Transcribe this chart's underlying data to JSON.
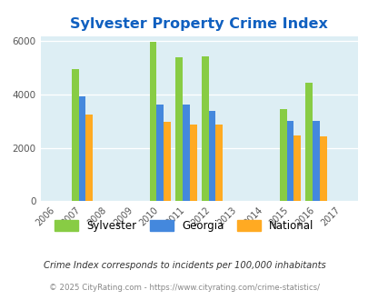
{
  "title": "Sylvester Property Crime Index",
  "title_color": "#1060c0",
  "years": [
    2006,
    2007,
    2008,
    2009,
    2010,
    2011,
    2012,
    2013,
    2014,
    2015,
    2016,
    2017
  ],
  "data_years": [
    2007,
    2010,
    2011,
    2012,
    2015,
    2016
  ],
  "sylvester": [
    4950,
    5980,
    5400,
    5450,
    3470,
    4440
  ],
  "georgia": [
    3920,
    3620,
    3620,
    3370,
    3010,
    3010
  ],
  "national": [
    3240,
    2960,
    2880,
    2870,
    2460,
    2420
  ],
  "sylvester_color": "#88cc44",
  "georgia_color": "#4488dd",
  "national_color": "#ffaa22",
  "plot_bg": "#ddeef4",
  "ylim": [
    0,
    6200
  ],
  "yticks": [
    0,
    2000,
    4000,
    6000
  ],
  "bar_width": 0.27,
  "footer_text": "Crime Index corresponds to incidents per 100,000 inhabitants",
  "copyright_text": "© 2025 CityRating.com - https://www.cityrating.com/crime-statistics/",
  "legend_labels": [
    "Sylvester",
    "Georgia",
    "National"
  ]
}
